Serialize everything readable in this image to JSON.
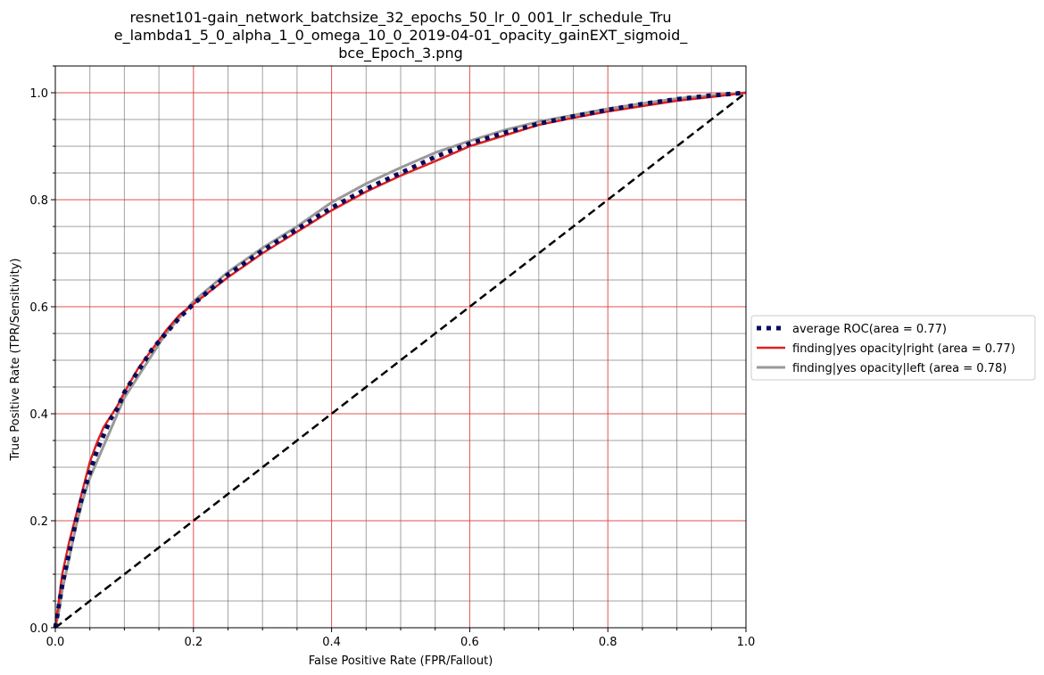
{
  "chart_data": {
    "type": "line",
    "title": "resnet101-gain_network_batchsize_32_epochs_50_lr_0_001_lr_schedule_True_lambda1_5_0_alpha_1_0_omega_10_0_2019-04-01_opacity_gainEXT_sigmoid_bce_Epoch_3.png",
    "title_lines": [
      "resnet101-gain_network_batchsize_32_epochs_50_lr_0_001_lr_schedule_Tru",
      "e_lambda1_5_0_alpha_1_0_omega_10_0_2019-04-01_opacity_gainEXT_sigmoid_",
      "bce_Epoch_3.png"
    ],
    "xlabel": "False Positive Rate (FPR/Fallout)",
    "ylabel": "True Positive Rate (TPR/Sensitivity)",
    "xlim": [
      0.0,
      1.0
    ],
    "ylim": [
      0.0,
      1.05
    ],
    "xticks": [
      "0.0",
      "0.2",
      "0.4",
      "0.6",
      "0.8",
      "1.0"
    ],
    "yticks": [
      "0.0",
      "0.2",
      "0.4",
      "0.6",
      "0.8",
      "1.0"
    ],
    "major_grid": true,
    "minor_grid": true,
    "major_grid_color": "#dd3333",
    "minor_grid_color": "#555555",
    "legend_position": "outside-right",
    "series": [
      {
        "name": "average ROC(area = 0.77)",
        "color": "#0a0a5c",
        "style": "dotted",
        "x": [
          0.0,
          0.005,
          0.01,
          0.02,
          0.03,
          0.04,
          0.05,
          0.06,
          0.07,
          0.08,
          0.09,
          0.1,
          0.12,
          0.14,
          0.16,
          0.18,
          0.2,
          0.25,
          0.3,
          0.35,
          0.4,
          0.45,
          0.5,
          0.55,
          0.6,
          0.65,
          0.7,
          0.75,
          0.8,
          0.85,
          0.9,
          0.95,
          1.0
        ],
        "y": [
          0.0,
          0.04,
          0.08,
          0.14,
          0.2,
          0.25,
          0.29,
          0.33,
          0.36,
          0.39,
          0.41,
          0.44,
          0.48,
          0.52,
          0.55,
          0.58,
          0.605,
          0.66,
          0.705,
          0.745,
          0.785,
          0.82,
          0.85,
          0.88,
          0.905,
          0.925,
          0.942,
          0.956,
          0.968,
          0.979,
          0.988,
          0.995,
          1.0
        ]
      },
      {
        "name": "finding|yes opacity|right (area = 0.77)",
        "color": "#e02020",
        "style": "solid",
        "x": [
          0.0,
          0.005,
          0.01,
          0.02,
          0.03,
          0.04,
          0.05,
          0.06,
          0.07,
          0.08,
          0.09,
          0.1,
          0.12,
          0.14,
          0.16,
          0.18,
          0.2,
          0.25,
          0.3,
          0.35,
          0.4,
          0.45,
          0.5,
          0.55,
          0.6,
          0.65,
          0.7,
          0.75,
          0.8,
          0.85,
          0.9,
          0.95,
          1.0
        ],
        "y": [
          0.0,
          0.05,
          0.1,
          0.16,
          0.21,
          0.26,
          0.31,
          0.345,
          0.375,
          0.395,
          0.415,
          0.44,
          0.485,
          0.52,
          0.555,
          0.585,
          0.605,
          0.655,
          0.7,
          0.74,
          0.78,
          0.815,
          0.845,
          0.872,
          0.9,
          0.92,
          0.94,
          0.953,
          0.965,
          0.975,
          0.985,
          0.992,
          1.0
        ]
      },
      {
        "name": " finding|yes opacity|left (area = 0.78)",
        "color": "#999999",
        "style": "solid",
        "x": [
          0.0,
          0.005,
          0.01,
          0.02,
          0.03,
          0.04,
          0.05,
          0.06,
          0.07,
          0.08,
          0.09,
          0.1,
          0.12,
          0.14,
          0.16,
          0.18,
          0.2,
          0.25,
          0.3,
          0.35,
          0.4,
          0.45,
          0.5,
          0.55,
          0.6,
          0.65,
          0.7,
          0.75,
          0.8,
          0.85,
          0.9,
          0.95,
          1.0
        ],
        "y": [
          0.0,
          0.03,
          0.07,
          0.13,
          0.19,
          0.24,
          0.28,
          0.31,
          0.34,
          0.37,
          0.4,
          0.43,
          0.47,
          0.51,
          0.55,
          0.58,
          0.61,
          0.665,
          0.71,
          0.75,
          0.795,
          0.83,
          0.86,
          0.888,
          0.91,
          0.93,
          0.946,
          0.958,
          0.97,
          0.98,
          0.989,
          0.995,
          1.0
        ]
      },
      {
        "name": "",
        "color": "#000000",
        "style": "dashed",
        "x": [
          0.0,
          1.0
        ],
        "y": [
          0.0,
          1.0
        ]
      }
    ]
  }
}
